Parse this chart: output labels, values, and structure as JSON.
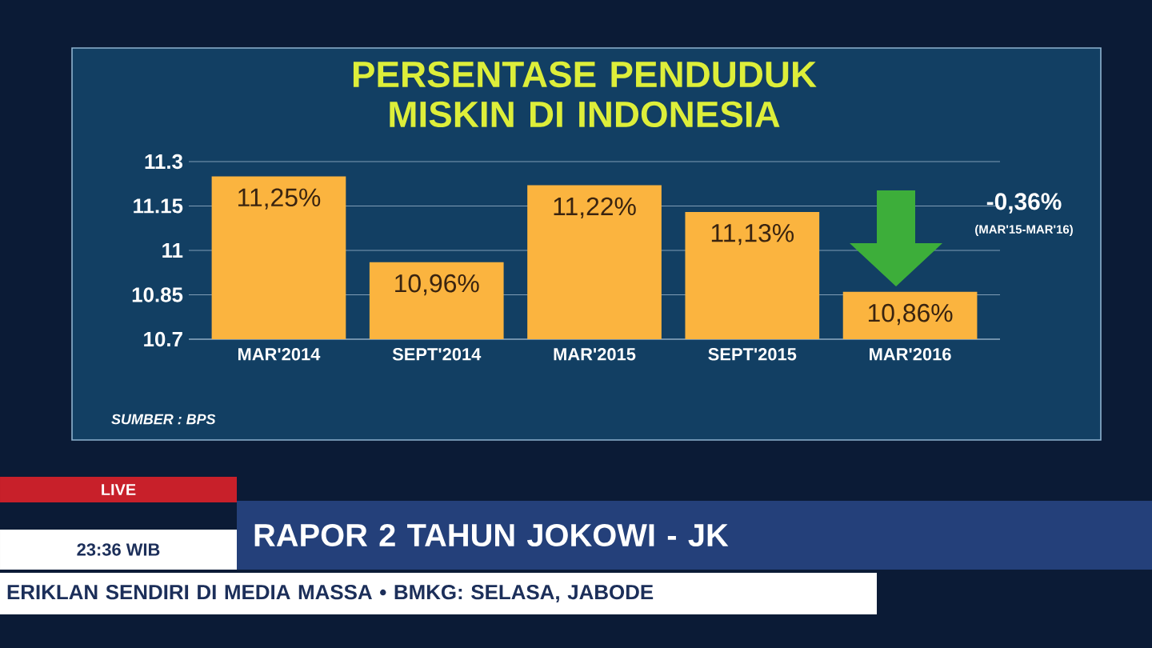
{
  "chart_data": {
    "type": "bar",
    "title": "PERSENTASE PENDUDUK MISKIN DI INDONESIA",
    "categories": [
      "MAR'2014",
      "SEPT'2014",
      "MAR'2015",
      "SEPT'2015",
      "MAR'2016"
    ],
    "values": [
      11.25,
      10.96,
      11.22,
      11.13,
      10.86
    ],
    "value_labels": [
      "11,25%",
      "10,96%",
      "11,22%",
      "11,13%",
      "10,86%"
    ],
    "color": "#fbb43f",
    "ylim": [
      10.7,
      11.3
    ],
    "yticks": [
      10.7,
      10.85,
      11,
      11.15,
      11.3
    ],
    "grid": "y",
    "annotations": [
      "-0,36%",
      "(MAR'15-MAR'16)",
      "SUMBER : BPS",
      "LIVE",
      "23:36 WIB",
      "RAPOR 2 TAHUN JOKOWI - JK",
      "ERIKLAN SENDIRI DI MEDIA MASSA • BMKG: SELASA, JABODE"
    ]
  }
}
